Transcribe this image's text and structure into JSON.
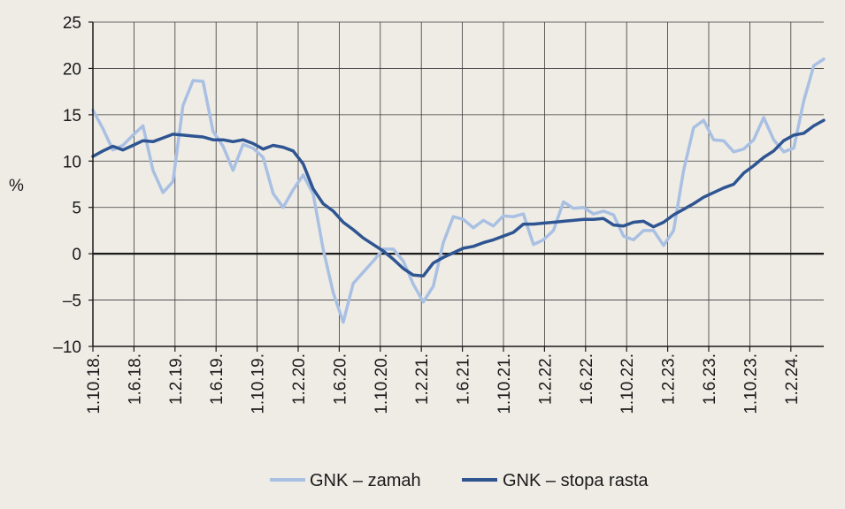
{
  "chart_data": {
    "type": "line",
    "title": "",
    "xlabel": "",
    "ylabel": "%",
    "ylim": [
      -10,
      25
    ],
    "yticks": [
      25,
      20,
      15,
      10,
      5,
      0,
      -5,
      -10
    ],
    "ytick_labels": [
      "25",
      "20",
      "15",
      "10",
      "5",
      "0",
      "–5",
      "–10"
    ],
    "x_tick_labels": [
      "1.10.18.",
      "1.6.18.",
      "1.2.19.",
      "1.6.19.",
      "1.10.19.",
      "1.2.20.",
      "1.6.20.",
      "1.10.20.",
      "1.2.21.",
      "1.6.21.",
      "1.10.21.",
      "1.2.22.",
      "1.6.22.",
      "1.10.22.",
      "1.2.23.",
      "1.6.23.",
      "1.10.23.",
      "1.2.24."
    ],
    "grid": true,
    "legend_position": "bottom-center",
    "series": [
      {
        "name": "GNK – zamah",
        "color": "#a9c0e3",
        "values": [
          15.5,
          13.5,
          11.2,
          11.7,
          12.8,
          13.8,
          9.0,
          6.6,
          7.8,
          16.0,
          18.7,
          18.6,
          13.2,
          11.6,
          9.0,
          11.8,
          11.4,
          10.4,
          6.5,
          5.0,
          6.9,
          8.5,
          6.5,
          0.5,
          -4.2,
          -7.4,
          -3.2,
          -2.0,
          -0.8,
          0.5,
          0.5,
          -0.8,
          -3.3,
          -5.2,
          -3.5,
          1.2,
          4.0,
          3.7,
          2.8,
          3.6,
          3.0,
          4.1,
          4.0,
          4.3,
          1.0,
          1.5,
          2.5,
          5.6,
          4.9,
          5.0,
          4.3,
          4.6,
          4.2,
          1.9,
          1.5,
          2.5,
          2.5,
          0.9,
          2.5,
          9.0,
          13.6,
          14.4,
          12.3,
          12.2,
          11.0,
          11.3,
          12.3,
          14.7,
          12.3,
          11.0,
          11.4,
          16.5,
          20.3,
          21.0
        ]
      },
      {
        "name": "GNK – stopa rasta",
        "color": "#2e5591",
        "values": [
          10.5,
          11.1,
          11.6,
          11.2,
          11.7,
          12.2,
          12.1,
          12.5,
          12.9,
          12.8,
          12.7,
          12.6,
          12.3,
          12.3,
          12.1,
          12.3,
          11.9,
          11.3,
          11.7,
          11.5,
          11.1,
          9.7,
          7.0,
          5.4,
          4.6,
          3.4,
          2.6,
          1.7,
          1.0,
          0.3,
          -0.6,
          -1.6,
          -2.3,
          -2.4,
          -1.0,
          -0.4,
          0.1,
          0.6,
          0.8,
          1.2,
          1.5,
          1.9,
          2.3,
          3.2,
          3.2,
          3.3,
          3.4,
          3.5,
          3.6,
          3.7,
          3.7,
          3.8,
          3.1,
          3.0,
          3.4,
          3.5,
          2.9,
          3.4,
          4.2,
          4.8,
          5.4,
          6.1,
          6.6,
          7.1,
          7.5,
          8.7,
          9.5,
          10.4,
          11.1,
          12.2,
          12.8,
          13.0,
          13.8,
          14.4
        ]
      }
    ]
  }
}
